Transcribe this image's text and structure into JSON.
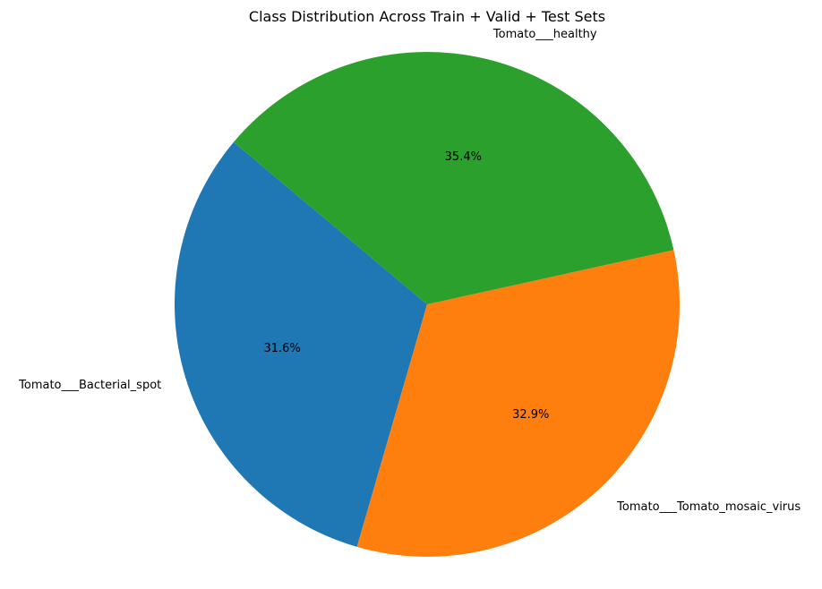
{
  "chart_data": {
    "type": "pie",
    "title": "Class Distribution Across Train + Valid + Test Sets",
    "start_angle_deg": 140,
    "direction": "counterclockwise",
    "slices": [
      {
        "label": "Tomato___Bacterial_spot",
        "value": 31.6,
        "pct_label": "31.6%",
        "color": "#1f77b4"
      },
      {
        "label": "Tomato___Tomato_mosaic_virus",
        "value": 32.9,
        "pct_label": "32.9%",
        "color": "#ff7f0e"
      },
      {
        "label": "Tomato___healthy",
        "value": 35.4,
        "pct_label": "35.4%",
        "color": "#2ca02c"
      }
    ]
  }
}
